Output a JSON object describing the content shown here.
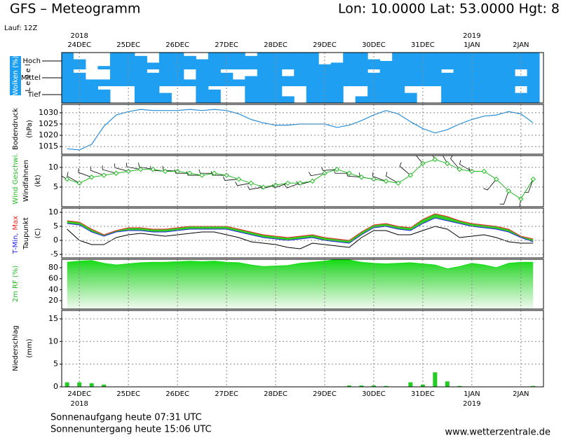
{
  "header": {
    "title": "GFS – Meteogramm",
    "location": "Lon: 10.0000 Lat: 53.0000 Hgt: 8",
    "run": "Lauf: 12Z"
  },
  "time_axis": {
    "x": [
      -0.25,
      0,
      0.25,
      0.5,
      0.75,
      1,
      1.25,
      1.5,
      1.75,
      2,
      2.25,
      2.5,
      2.75,
      3,
      3.25,
      3.5,
      3.75,
      4,
      4.25,
      4.5,
      4.75,
      5,
      5.25,
      5.5,
      5.75,
      6,
      6.25,
      6.5,
      6.75,
      7,
      7.25,
      7.5,
      7.75,
      8,
      8.25,
      8.5,
      8.75,
      9,
      9.25
    ],
    "xlim": [
      -0.36,
      9.46
    ],
    "xticks": [
      {
        "value": 0,
        "label": "24DEC"
      },
      {
        "value": 1,
        "label": "25DEC"
      },
      {
        "value": 2,
        "label": "26DEC"
      },
      {
        "value": 3,
        "label": "27DEC"
      },
      {
        "value": 4,
        "label": "28DEC"
      },
      {
        "value": 5,
        "label": "29DEC"
      },
      {
        "value": 6,
        "label": "30DEC"
      },
      {
        "value": 7,
        "label": "31DEC"
      },
      {
        "value": 8,
        "label": "1JAN"
      },
      {
        "value": 9,
        "label": "2JAN"
      }
    ],
    "year_labels": [
      "2018",
      "2019"
    ]
  },
  "chart_data": [
    {
      "type": "cloud_layers",
      "ylabel": "Wolken (%)",
      "sublabel": "L e v e l",
      "ylim": [
        0,
        100
      ],
      "series": [
        {
          "name": "Hoch",
          "color": "#1e9ff2",
          "values": [
            100,
            60,
            0,
            20,
            100,
            100,
            80,
            40,
            100,
            100,
            80,
            60,
            100,
            100,
            100,
            80,
            100,
            100,
            100,
            100,
            100,
            30,
            40,
            100,
            100,
            60,
            50,
            100,
            100,
            100,
            100,
            100,
            100,
            100,
            100,
            100,
            100,
            100,
            100
          ]
        },
        {
          "name": "Mittel",
          "color": "#1e9ff2",
          "values": [
            100,
            80,
            40,
            40,
            100,
            100,
            100,
            80,
            100,
            100,
            40,
            100,
            100,
            80,
            40,
            60,
            100,
            100,
            60,
            100,
            100,
            100,
            100,
            100,
            100,
            80,
            100,
            100,
            100,
            100,
            100,
            80,
            100,
            100,
            100,
            100,
            100,
            60,
            100
          ]
        },
        {
          "name": "Tief",
          "color": "#1e9ff2",
          "values": [
            100,
            100,
            100,
            80,
            0,
            0,
            100,
            100,
            60,
            0,
            0,
            100,
            80,
            0,
            0,
            100,
            100,
            100,
            40,
            0,
            100,
            100,
            100,
            0,
            40,
            100,
            100,
            100,
            60,
            0,
            0,
            100,
            100,
            100,
            100,
            100,
            100,
            60,
            100
          ]
        }
      ]
    },
    {
      "type": "line",
      "ylabel": "Bodendruck",
      "yunit": "(hPa)",
      "ylim": [
        1011.6,
        1033.7
      ],
      "yticks": [
        1015,
        1020,
        1025,
        1030
      ],
      "grid": true,
      "color": "#2a8fd6",
      "values": [
        1014,
        1013.5,
        1016,
        1024,
        1029,
        1030.5,
        1031.5,
        1031,
        1031,
        1031,
        1031.5,
        1031,
        1031.5,
        1031,
        1029.5,
        1027,
        1025.5,
        1024.5,
        1024.5,
        1025,
        1025,
        1025,
        1023.5,
        1024.5,
        1026.5,
        1029,
        1031,
        1029.5,
        1026,
        1023,
        1021,
        1022.5,
        1025,
        1027,
        1028.5,
        1029,
        1030.5,
        1029.5,
        1025.5
      ]
    },
    {
      "type": "wind",
      "yunit": "(kt)",
      "ylim": [
        0,
        13
      ],
      "yticks": [
        5,
        10
      ],
      "grid": true,
      "series": [
        {
          "name": "Wind Geschwi.",
          "color": "#22bb22",
          "values": [
            7,
            6,
            7.5,
            8,
            8.5,
            9,
            9.5,
            9.5,
            9,
            9,
            8.5,
            8,
            8.5,
            8,
            7,
            6,
            5,
            5.5,
            6,
            6,
            6.5,
            8.5,
            9.5,
            8.5,
            7.5,
            7,
            6.5,
            6,
            8,
            11,
            12,
            11,
            9.5,
            9,
            9,
            7,
            4,
            2,
            7
          ]
        },
        {
          "name": "Windfahnen",
          "color": "#000000",
          "values": [
            300,
            300,
            290,
            290,
            285,
            285,
            280,
            280,
            275,
            275,
            270,
            270,
            270,
            270,
            265,
            260,
            260,
            255,
            250,
            250,
            255,
            260,
            265,
            270,
            275,
            280,
            290,
            300,
            310,
            320,
            330,
            330,
            320,
            300,
            270,
            220,
            200,
            190,
            200
          ]
        }
      ]
    },
    {
      "type": "multi_line",
      "yunit": "(C)",
      "ylim": [
        -6.25,
        11.5
      ],
      "yticks": [
        -5,
        0,
        5,
        10
      ],
      "grid": true,
      "fill": "#33cc22",
      "series": [
        {
          "name": "T-Min,",
          "color": "#2222ee",
          "values": [
            6,
            5.5,
            3,
            1.5,
            3,
            3.5,
            3.5,
            3,
            3,
            3.5,
            4,
            4,
            4,
            4,
            3,
            2,
            1,
            0.5,
            0,
            0.5,
            1,
            0,
            -0.5,
            -1,
            2,
            4.5,
            5,
            4,
            3.5,
            6,
            8,
            7,
            6,
            5,
            4.5,
            4,
            3,
            1,
            -0.5
          ]
        },
        {
          "name": "Max",
          "color": "#ee2222",
          "values": [
            7,
            6.5,
            4,
            2,
            3.5,
            4.5,
            4.5,
            4,
            4,
            4.5,
            5,
            5,
            5,
            5,
            4,
            3,
            2,
            1.5,
            1,
            1.5,
            2,
            1,
            0.5,
            0,
            3,
            5.5,
            6,
            5,
            4.5,
            7.5,
            9.5,
            8.5,
            7,
            6,
            5.5,
            5,
            4,
            1.5,
            0.5
          ]
        },
        {
          "name": "Taupunkt",
          "color": "#000000",
          "values": [
            4,
            0,
            -1.5,
            -1.5,
            1,
            2,
            2.5,
            2,
            1.5,
            2,
            2.5,
            3,
            3,
            2,
            1,
            -0.5,
            -1,
            -1.5,
            -2.5,
            -3,
            -1,
            -1.5,
            -2,
            -2.5,
            1,
            3.5,
            3.5,
            2,
            2,
            3.5,
            5,
            4,
            1,
            1.5,
            2,
            1,
            -0.5,
            -1,
            -1
          ]
        }
      ]
    },
    {
      "type": "area",
      "ylabel": "2m RF (%)",
      "ylim": [
        4.7,
        95.3
      ],
      "yticks": [
        20,
        40,
        60,
        80
      ],
      "color": "#11dd11",
      "values": [
        90,
        92,
        93,
        88,
        85,
        87,
        89,
        90,
        90,
        91,
        92,
        91,
        92,
        90,
        89,
        85,
        82,
        83,
        84,
        88,
        90,
        92,
        95,
        94,
        90,
        88,
        87,
        88,
        89,
        87,
        85,
        78,
        82,
        88,
        85,
        80,
        88,
        90,
        90
      ]
    },
    {
      "type": "bar",
      "ylabel": "Niederschlag",
      "yunit": "(mm)",
      "ylim": [
        0,
        16.85
      ],
      "yticks": [
        0,
        5,
        10,
        15
      ],
      "grid": true,
      "color": "#22cc22",
      "values": [
        1,
        1,
        0.8,
        0.5,
        0,
        0,
        0,
        0,
        0,
        0,
        0,
        0,
        0,
        0,
        0,
        0,
        0,
        0,
        0,
        0,
        0,
        0,
        0,
        0.3,
        0.3,
        0.3,
        0.2,
        0,
        1,
        0.5,
        3.2,
        1.2,
        0.2,
        0,
        0,
        0,
        0,
        0,
        0.2
      ]
    }
  ],
  "footer": {
    "sunrise": "Sonnenaufgang heute 07:31 UTC",
    "sunset": "Sonnenuntergang heute 15:06 UTC",
    "source": "www.wetterzentrale.de"
  }
}
